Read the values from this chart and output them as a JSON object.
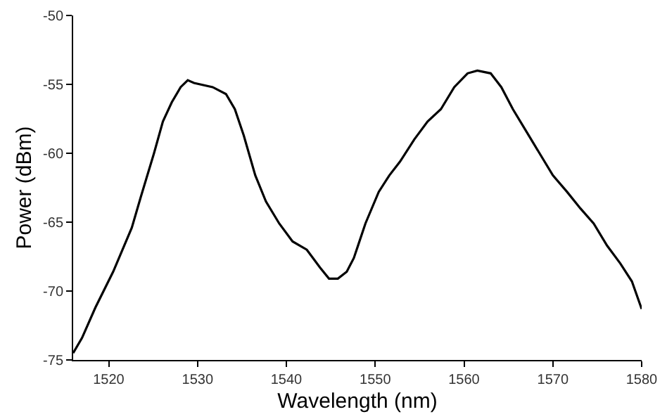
{
  "chart_data": {
    "type": "line",
    "xlabel": "Wavelength (nm)",
    "ylabel": "Power (dBm)",
    "x": [
      1516,
      1517,
      1518.5,
      1520.5,
      1522.6,
      1523.6,
      1525.1,
      1526.1,
      1527.1,
      1528.1,
      1528.9,
      1529.6,
      1531.7,
      1533.2,
      1534.2,
      1535.2,
      1536.5,
      1537.7,
      1539.2,
      1540.7,
      1542.3,
      1543.8,
      1544.8,
      1545.8,
      1546.8,
      1547.6,
      1548.9,
      1550.4,
      1551.6,
      1552.8,
      1554.4,
      1555.9,
      1557.4,
      1558.9,
      1560.4,
      1561.5,
      1563.0,
      1564.2,
      1565.5,
      1567.0,
      1568.5,
      1570.0,
      1571.6,
      1573.1,
      1574.6,
      1576.1,
      1577.6,
      1578.9,
      1580
    ],
    "series": [
      {
        "color": "#000000",
        "values": [
          -74.5,
          -73.4,
          -71.2,
          -68.6,
          -65.4,
          -63.2,
          -60.0,
          -57.7,
          -56.3,
          -55.2,
          -54.7,
          -54.9,
          -55.2,
          -55.7,
          -56.8,
          -58.7,
          -61.6,
          -63.5,
          -65.1,
          -66.4,
          -67.0,
          -68.3,
          -69.1,
          -69.1,
          -68.6,
          -67.6,
          -65.1,
          -62.8,
          -61.6,
          -60.6,
          -59.0,
          -57.7,
          -56.8,
          -55.2,
          -54.2,
          -54.0,
          -54.2,
          -55.2,
          -56.8,
          -58.4,
          -60.0,
          -61.6,
          -62.8,
          -64.0,
          -65.1,
          -66.7,
          -68.0,
          -69.3,
          -71.3
        ]
      }
    ],
    "xlim": [
      1516,
      1580
    ],
    "ylim": [
      -75,
      -50
    ],
    "xticks": [
      1520,
      1530,
      1540,
      1550,
      1560,
      1570,
      1580
    ],
    "yticks": [
      -75,
      -70,
      -65,
      -60,
      -55,
      -50
    ],
    "marker": "none",
    "line_style": "solid"
  }
}
